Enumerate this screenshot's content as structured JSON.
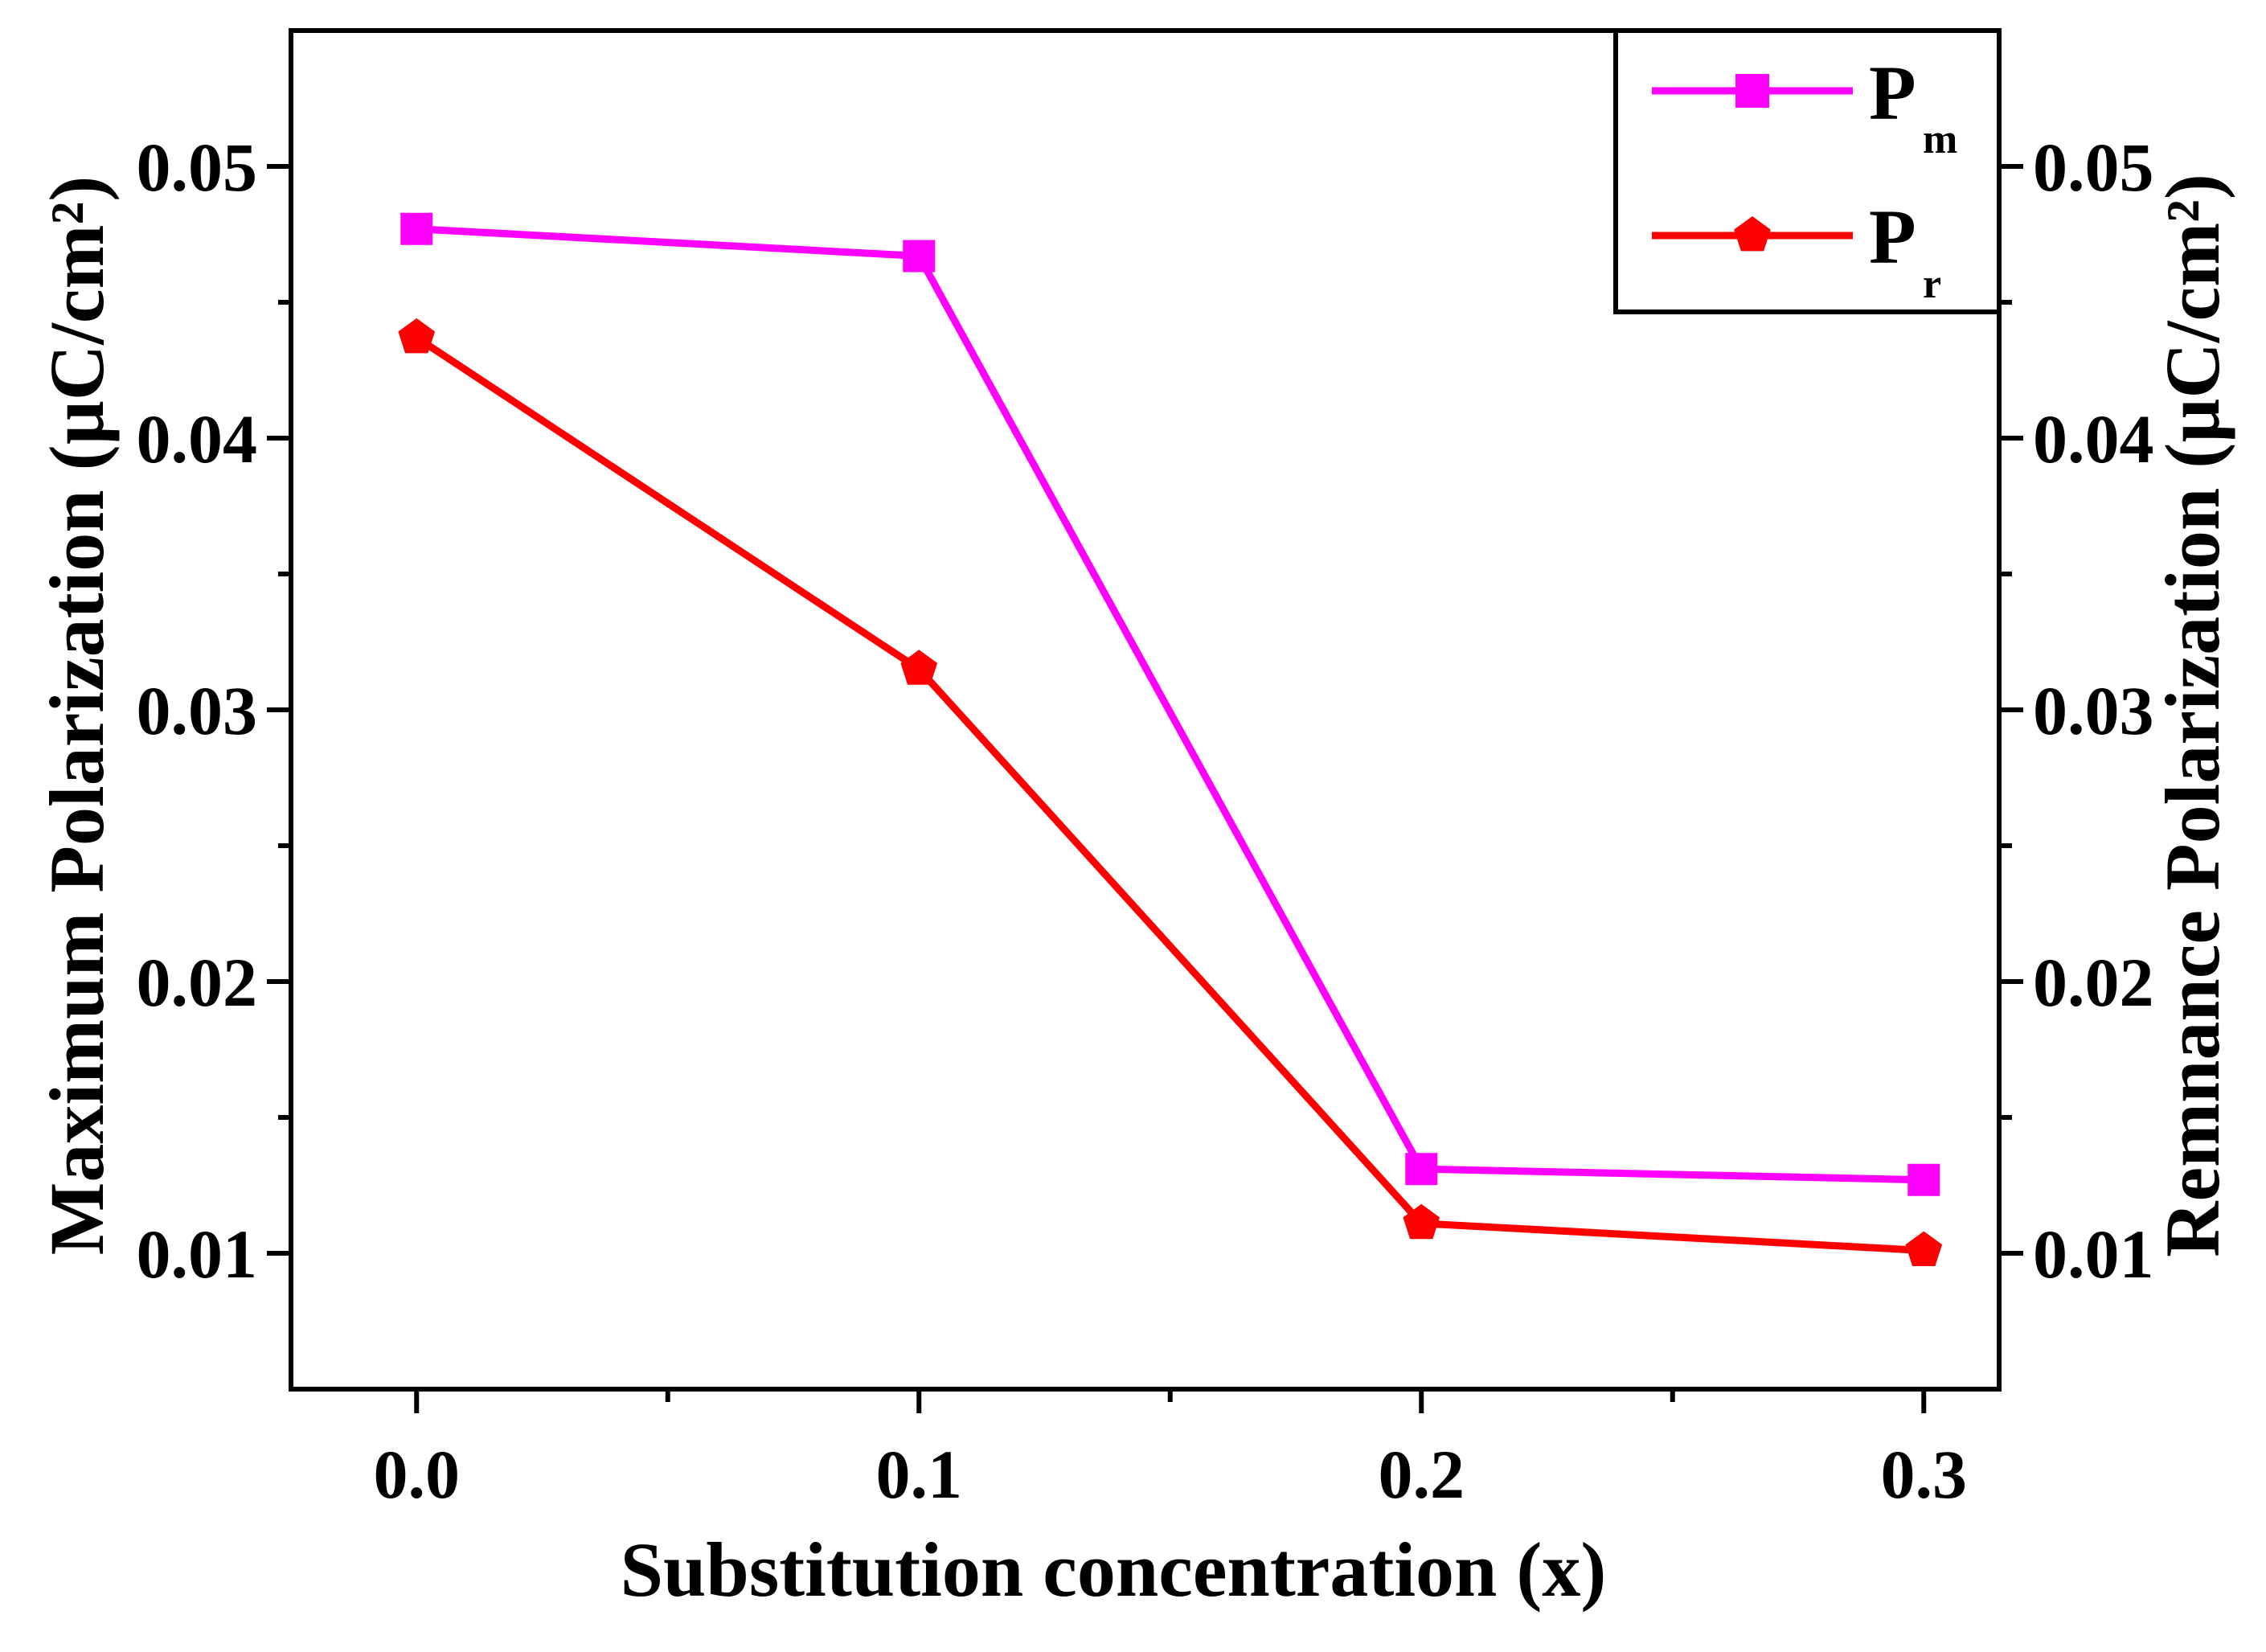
{
  "chart_data": {
    "type": "line",
    "x": [
      0.0,
      0.1,
      0.2,
      0.3
    ],
    "xlabel": "Substitution concentration (x)",
    "xlim": [
      -0.025,
      0.315
    ],
    "x_ticks": [
      "0.0",
      "0.1",
      "0.2",
      "0.3"
    ],
    "ylabel_left": "Maximum Polarization (µC/cm²)",
    "ylabel_right": "Remnance Polarization (µC/cm²)",
    "ylim": [
      0.005,
      0.055
    ],
    "y_ticks_left": [
      "0.01",
      "0.02",
      "0.03",
      "0.04",
      "0.05"
    ],
    "y_ticks_right": [
      "0.01",
      "0.02",
      "0.03",
      "0.04",
      "0.05"
    ],
    "legend_position": "top-right",
    "series": [
      {
        "name": "P",
        "subscript": "m",
        "marker": "square",
        "color": "#ff00ff",
        "axis": "left",
        "values": [
          0.0477,
          0.0467,
          0.0131,
          0.0127
        ]
      },
      {
        "name": "P",
        "subscript": "r",
        "marker": "pentagon",
        "color": "#ff0000",
        "axis": "right",
        "values": [
          0.0437,
          0.0315,
          0.0111,
          0.0101
        ]
      }
    ]
  }
}
